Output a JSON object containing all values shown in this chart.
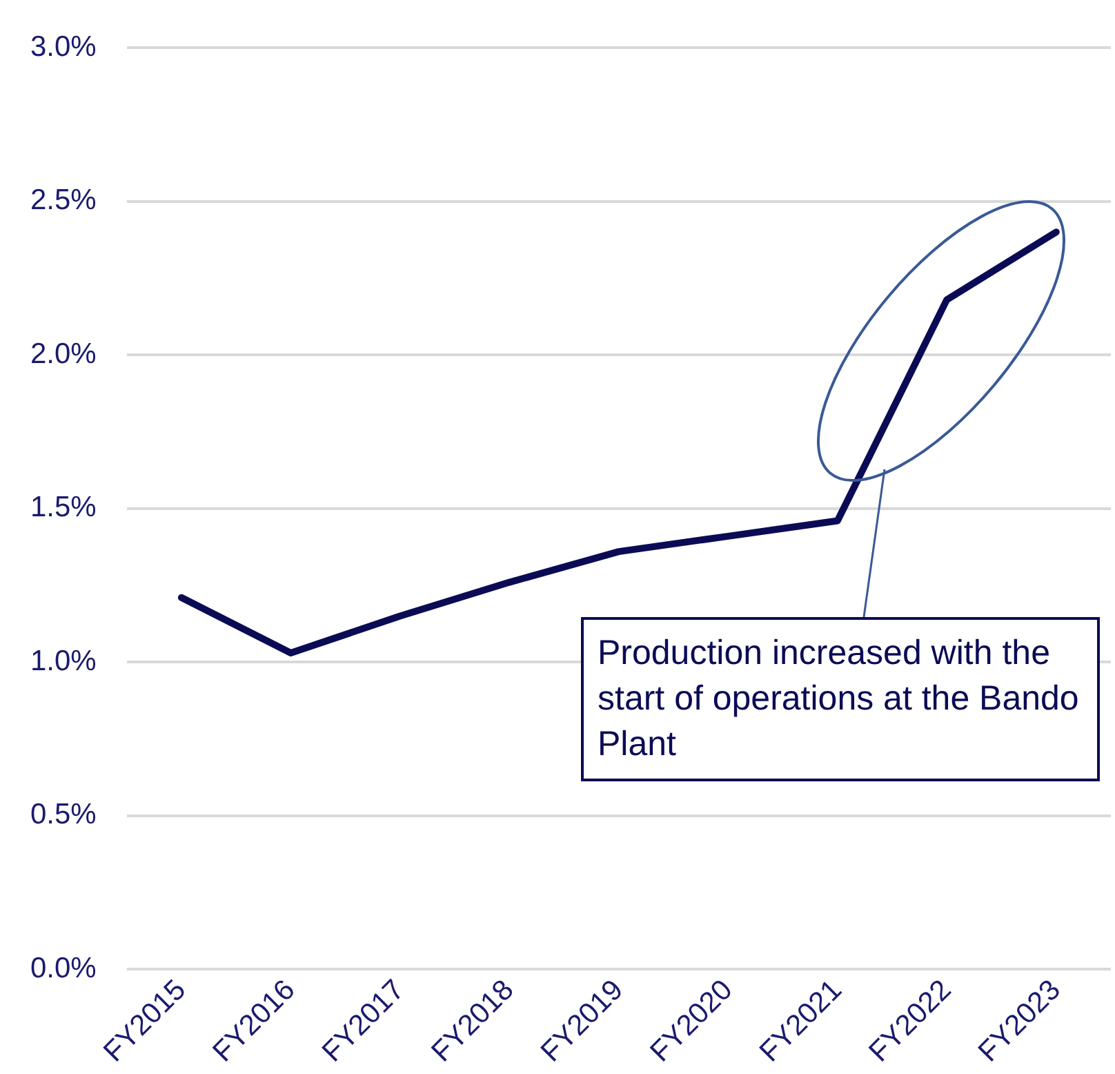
{
  "chart_data": {
    "type": "line",
    "categories": [
      "FY2015",
      "FY2016",
      "FY2017",
      "FY2018",
      "FY2019",
      "FY2020",
      "FY2021",
      "FY2022",
      "FY2023"
    ],
    "series": [
      {
        "color": "#0b0b55",
        "values": [
          1.21,
          1.03,
          1.15,
          1.26,
          1.36,
          1.41,
          1.46,
          2.18,
          2.4
        ]
      }
    ],
    "ylim": [
      0,
      3
    ],
    "yticks": [
      {
        "value": 0,
        "label": "0.0%"
      },
      {
        "value": 0.5,
        "label": "0.5%"
      },
      {
        "value": 1,
        "label": "1.0%"
      },
      {
        "value": 1.5,
        "label": "1.5%"
      },
      {
        "value": 2,
        "label": "2.0%"
      },
      {
        "value": 2.5,
        "label": "2.5%"
      },
      {
        "value": 3,
        "label": "3.0%"
      }
    ],
    "grid": "y",
    "legend": false,
    "marker": "none",
    "line_style": "solid",
    "annotations": [
      "Production increased with the start of operations at the Bando Plant"
    ]
  }
}
